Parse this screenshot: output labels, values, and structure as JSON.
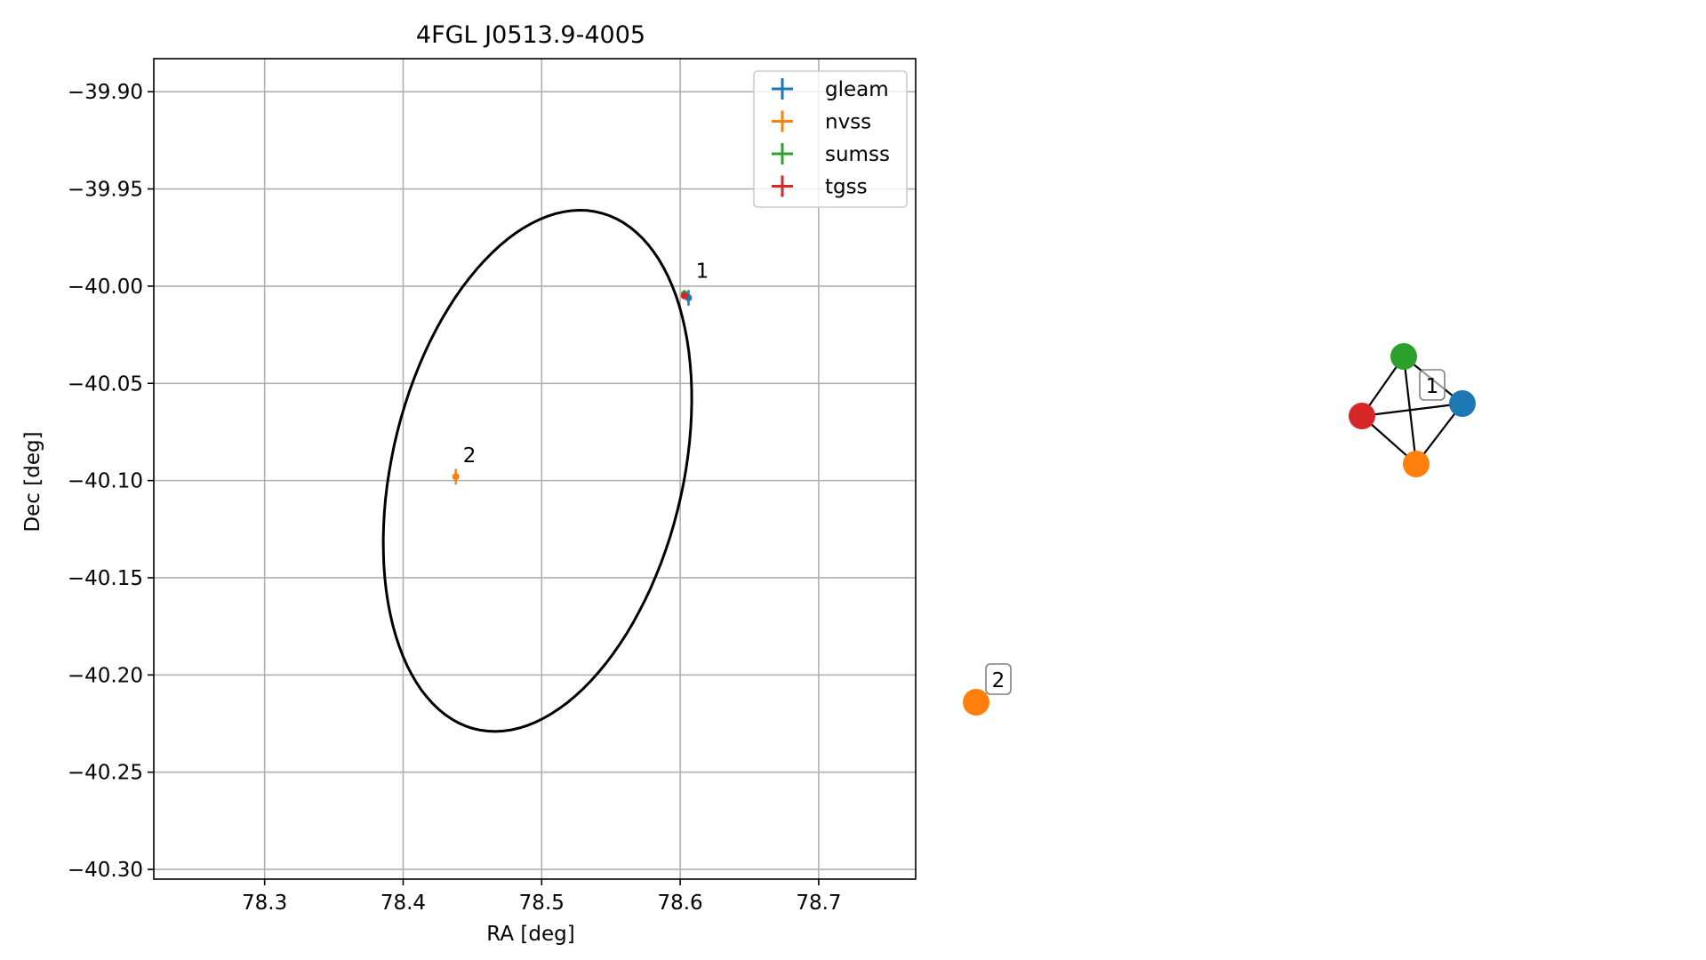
{
  "chart_data": [
    {
      "type": "scatter",
      "title": "4FGL J0513.9-4005",
      "xlabel": "RA [deg]",
      "ylabel": "Dec [deg]",
      "xlim": [
        78.22,
        78.77
      ],
      "ylim": [
        -40.305,
        -39.883
      ],
      "xticks": [
        78.3,
        78.4,
        78.5,
        78.6,
        78.7
      ],
      "xtick_labels": [
        "78.3",
        "78.4",
        "78.5",
        "78.6",
        "78.7"
      ],
      "yticks": [
        -39.9,
        -39.95,
        -40.0,
        -40.05,
        -40.1,
        -40.15,
        -40.2,
        -40.25,
        -40.3
      ],
      "ytick_labels": [
        "−39.90",
        "−39.95",
        "−40.00",
        "−40.05",
        "−40.10",
        "−40.15",
        "−40.20",
        "−40.25",
        "−40.30"
      ],
      "grid": true,
      "legend_position": "top-right",
      "series": [
        {
          "name": "gleam",
          "color": "#1f77b4",
          "points": [
            {
              "ra": 78.606,
              "dec": -40.006,
              "ra_err": 0.002,
              "dec_err": 0.004
            }
          ]
        },
        {
          "name": "nvss",
          "color": "#ff7f0e",
          "points": [
            {
              "ra": 78.438,
              "dec": -40.098,
              "ra_err": 0.001,
              "dec_err": 0.004
            }
          ]
        },
        {
          "name": "sumss",
          "color": "#2ca02c",
          "points": [
            {
              "ra": 78.603,
              "dec": -40.004,
              "ra_err": 0.002,
              "dec_err": 0.002
            }
          ]
        },
        {
          "name": "tgss",
          "color": "#d62728",
          "points": [
            {
              "ra": 78.603,
              "dec": -40.005,
              "ra_err": 0.001,
              "dec_err": 0.001
            }
          ]
        }
      ],
      "ellipse": {
        "center_ra": 78.497,
        "center_dec": -40.095,
        "semi_major": 0.142,
        "semi_minor": 0.101,
        "angle_deg": 62
      },
      "annotations": [
        {
          "text": "1",
          "ra": 78.608,
          "dec": -39.997
        },
        {
          "text": "2",
          "ra": 78.44,
          "dec": -40.092
        }
      ]
    },
    {
      "type": "network",
      "nodes": [
        {
          "id": "gleam",
          "color": "#1f77b4"
        },
        {
          "id": "nvss",
          "color": "#ff7f0e"
        },
        {
          "id": "sumss",
          "color": "#2ca02c"
        },
        {
          "id": "tgss",
          "color": "#d62728"
        },
        {
          "id": "nvss-2",
          "color": "#ff7f0e"
        }
      ],
      "edges": [
        [
          "sumss",
          "tgss"
        ],
        [
          "sumss",
          "gleam"
        ],
        [
          "sumss",
          "nvss"
        ],
        [
          "tgss",
          "gleam"
        ],
        [
          "tgss",
          "nvss"
        ],
        [
          "gleam",
          "nvss"
        ]
      ],
      "group_labels": [
        "1",
        "2"
      ]
    }
  ]
}
